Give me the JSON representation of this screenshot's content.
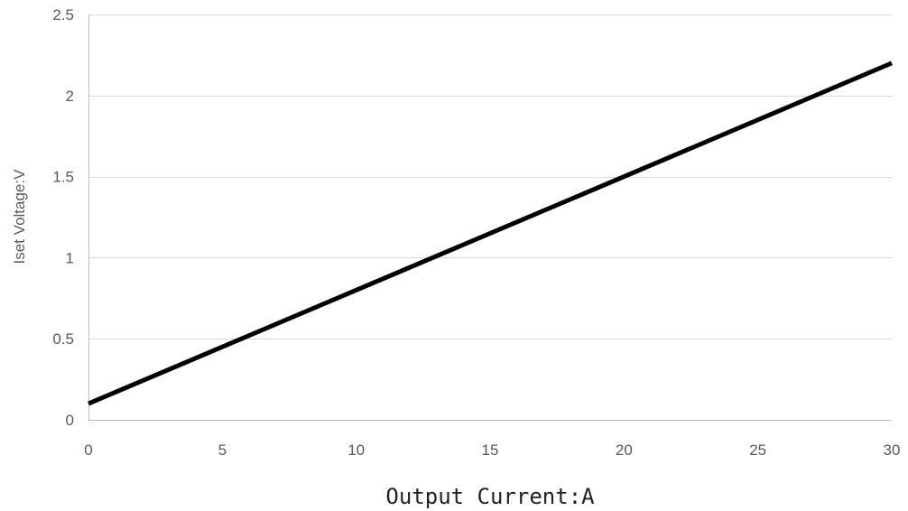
{
  "chart_data": {
    "type": "line",
    "title": "",
    "xlabel": "Output Current:A",
    "ylabel": "Iset Voltage:V",
    "xlim": [
      0,
      30
    ],
    "ylim": [
      0,
      2.5
    ],
    "x_ticks": [
      "0",
      "5",
      "10",
      "15",
      "20",
      "25",
      "30"
    ],
    "y_ticks": [
      "0",
      "0.5",
      "1",
      "1.5",
      "2",
      "2.5"
    ],
    "grid": "horizontal",
    "legend": "none",
    "series": [
      {
        "x": [
          0,
          30
        ],
        "y": [
          0.1,
          2.2
        ],
        "color": "#000000"
      }
    ]
  }
}
